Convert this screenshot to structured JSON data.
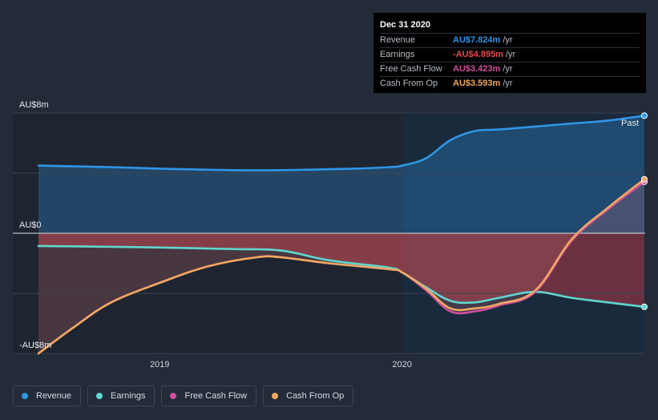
{
  "chart_data": {
    "type": "area",
    "x_ticks": [
      "2019",
      "2020"
    ],
    "y_ticks": [
      "AU$8m",
      "AU$0",
      "-AU$8m"
    ],
    "ylim": [
      -8,
      8
    ],
    "past_label": "Past",
    "series": [
      {
        "name": "Revenue",
        "color": "#2f96e6",
        "x": [
          2018.5,
          2018.8,
          2019.0,
          2019.3,
          2019.5,
          2019.8,
          2019.95,
          2020.0,
          2020.1,
          2020.2,
          2020.3,
          2020.4,
          2020.55,
          2020.7,
          2020.85,
          2021.0
        ],
        "values": [
          4.5,
          4.4,
          4.3,
          4.2,
          4.2,
          4.3,
          4.4,
          4.5,
          5.0,
          6.2,
          6.8,
          6.9,
          7.1,
          7.3,
          7.5,
          7.824
        ]
      },
      {
        "name": "Earnings",
        "color": "#5fd6d0",
        "x": [
          2018.5,
          2018.8,
          2019.0,
          2019.3,
          2019.5,
          2019.7,
          2019.95,
          2020.0,
          2020.1,
          2020.2,
          2020.3,
          2020.4,
          2020.55,
          2020.7,
          2020.85,
          2021.0
        ],
        "values": [
          -0.85,
          -0.9,
          -0.95,
          -1.05,
          -1.15,
          -1.8,
          -2.3,
          -2.6,
          -3.6,
          -4.5,
          -4.6,
          -4.3,
          -3.9,
          -4.3,
          -4.6,
          -4.895
        ]
      },
      {
        "name": "Free Cash Flow",
        "color": "#d0509f",
        "x": [
          2018.5,
          2018.65,
          2018.8,
          2019.0,
          2019.2,
          2019.4,
          2019.5,
          2019.7,
          2019.95,
          2020.0,
          2020.1,
          2020.2,
          2020.3,
          2020.4,
          2020.55,
          2020.7,
          2020.85,
          2021.0
        ],
        "values": [
          -8.0,
          -6.2,
          -4.6,
          -3.3,
          -2.2,
          -1.6,
          -1.6,
          -2.0,
          -2.4,
          -2.6,
          -3.8,
          -5.2,
          -5.2,
          -4.8,
          -3.9,
          -0.5,
          1.6,
          3.423
        ]
      },
      {
        "name": "Cash From Op",
        "color": "#f0a860",
        "x": [
          2018.5,
          2018.65,
          2018.8,
          2019.0,
          2019.2,
          2019.4,
          2019.5,
          2019.7,
          2019.95,
          2020.0,
          2020.1,
          2020.2,
          2020.3,
          2020.4,
          2020.55,
          2020.7,
          2020.85,
          2021.0
        ],
        "values": [
          -8.0,
          -6.2,
          -4.6,
          -3.3,
          -2.2,
          -1.6,
          -1.6,
          -2.0,
          -2.4,
          -2.6,
          -3.7,
          -5.0,
          -5.0,
          -4.7,
          -3.8,
          -0.4,
          1.7,
          3.593
        ]
      }
    ]
  },
  "tooltip": {
    "date": "Dec 31 2020",
    "rows": [
      {
        "label": "Revenue",
        "value": "AU$7.824m",
        "unit": "/yr",
        "color": "#2f96e6"
      },
      {
        "label": "Earnings",
        "value": "-AU$4.895m",
        "unit": "/yr",
        "color": "#e8474a"
      },
      {
        "label": "Free Cash Flow",
        "value": "AU$3.423m",
        "unit": "/yr",
        "color": "#d0509f"
      },
      {
        "label": "Cash From Op",
        "value": "AU$3.593m",
        "unit": "/yr",
        "color": "#f0a860"
      }
    ]
  },
  "legend": [
    {
      "label": "Revenue",
      "color": "#2f96e6"
    },
    {
      "label": "Earnings",
      "color": "#5fd6d0"
    },
    {
      "label": "Free Cash Flow",
      "color": "#d0509f"
    },
    {
      "label": "Cash From Op",
      "color": "#f0a860"
    }
  ]
}
